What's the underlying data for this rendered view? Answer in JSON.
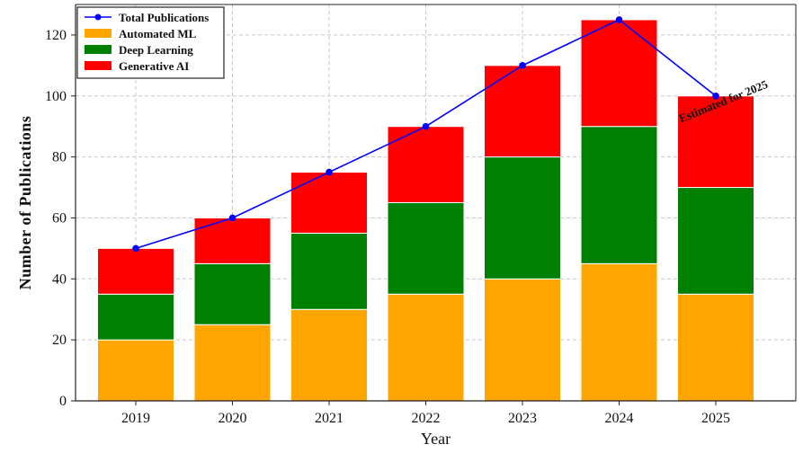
{
  "chart_data": {
    "type": "bar",
    "stacked": true,
    "categories": [
      "2019",
      "2020",
      "2021",
      "2022",
      "2023",
      "2024",
      "2025"
    ],
    "series": [
      {
        "name": "Automated ML",
        "values": [
          20,
          25,
          30,
          35,
          40,
          45,
          35
        ],
        "color": "#FFA500"
      },
      {
        "name": "Deep Learning",
        "values": [
          15,
          20,
          25,
          30,
          40,
          45,
          35
        ],
        "color": "#008000"
      },
      {
        "name": "Generative AI",
        "values": [
          15,
          15,
          20,
          25,
          30,
          35,
          30
        ],
        "color": "#FF0000"
      }
    ],
    "line_series": {
      "name": "Total Publications",
      "values": [
        50,
        60,
        75,
        90,
        110,
        125,
        100
      ],
      "color": "#0000FF"
    },
    "xlabel": "Year",
    "ylabel": "Number  of  Publications",
    "ylim": [
      0,
      130
    ],
    "yticks": [
      0,
      20,
      40,
      60,
      80,
      100,
      120
    ],
    "grid": true,
    "legend_position": "top-left",
    "annotation": {
      "text": "Estimated for 2025",
      "category": "2025",
      "value": 100
    }
  }
}
